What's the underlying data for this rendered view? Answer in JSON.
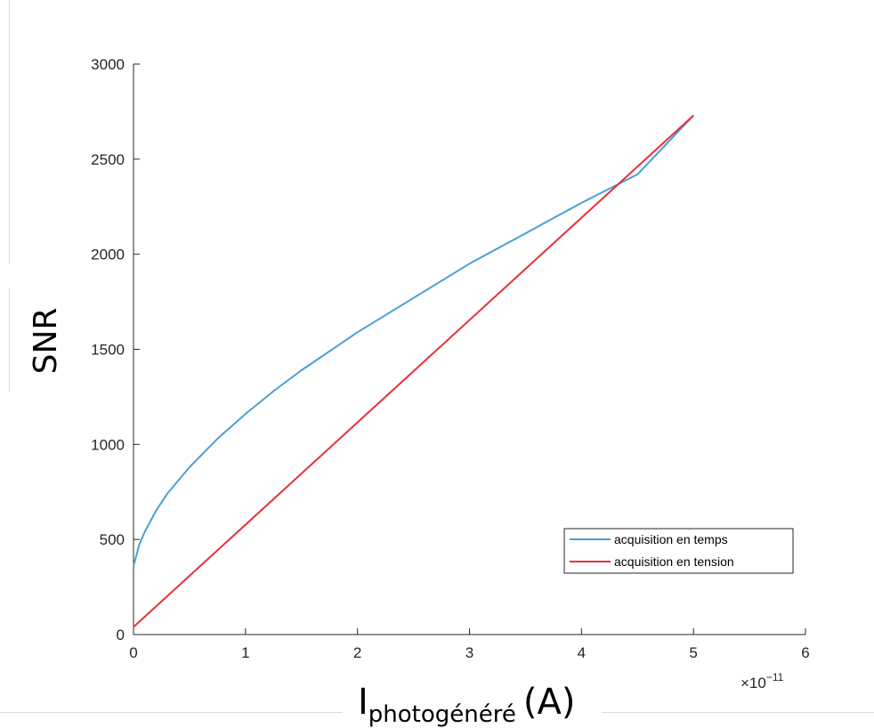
{
  "chart_data": {
    "type": "line",
    "xlabel_main": "I",
    "xlabel_sub": "photogénéré",
    "xlabel_unit": "(A)",
    "ylabel": "SNR",
    "x_exponent_label": "×10",
    "x_exponent_power": "−11",
    "xlim": [
      0,
      6
    ],
    "ylim": [
      0,
      3000
    ],
    "x_ticks": [
      "0",
      "1",
      "2",
      "3",
      "4",
      "5",
      "6"
    ],
    "y_ticks": [
      "0",
      "500",
      "1000",
      "1500",
      "2000",
      "2500",
      "3000"
    ],
    "x_tick_values": [
      0,
      1,
      2,
      3,
      4,
      5,
      6
    ],
    "y_tick_values": [
      0,
      500,
      1000,
      1500,
      2000,
      2500,
      3000
    ],
    "legend_position": "lower-right",
    "series": [
      {
        "name": "acquisition en temps",
        "color": "#4a9fd6",
        "x": [
          0,
          0.05,
          0.1,
          0.2,
          0.3,
          0.5,
          0.75,
          1,
          1.25,
          1.5,
          2,
          2.5,
          3,
          3.5,
          4,
          4.5,
          5
        ],
        "y": [
          360,
          470,
          540,
          650,
          740,
          880,
          1030,
          1160,
          1280,
          1390,
          1590,
          1770,
          1950,
          2110,
          2270,
          2420,
          2730
        ]
      },
      {
        "name": "acquisition en tension",
        "color": "#e8303a",
        "x": [
          0,
          5
        ],
        "y": [
          40,
          2730
        ]
      }
    ]
  }
}
